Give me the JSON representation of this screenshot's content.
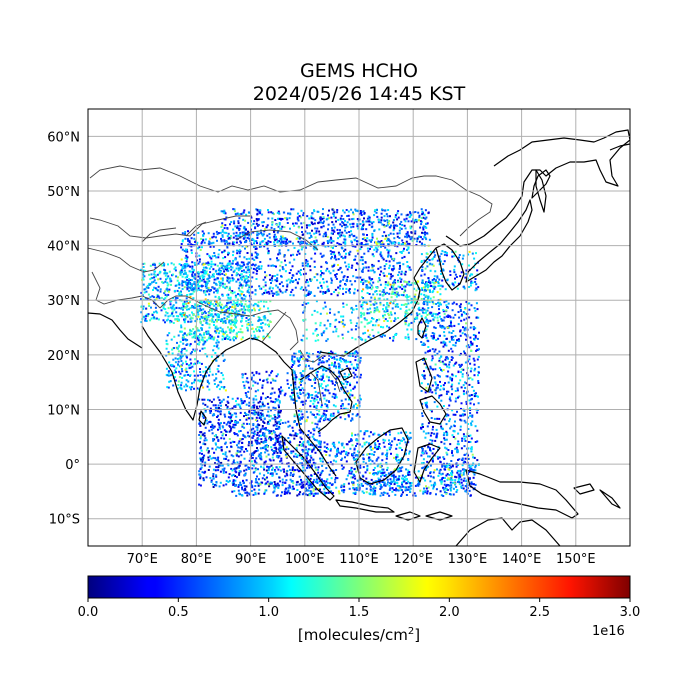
{
  "title": {
    "line1": "GEMS HCHO",
    "line2": "2024/05/26 14:45 KST"
  },
  "map": {
    "lat_ticks": [
      "60°N",
      "50°N",
      "40°N",
      "30°N",
      "20°N",
      "10°N",
      "0°",
      "10°S"
    ],
    "lon_ticks": [
      "70°E",
      "80°E",
      "90°E",
      "100°E",
      "110°E",
      "120°E",
      "130°E",
      "140°E",
      "150°E"
    ],
    "lon_range": [
      60,
      160
    ],
    "lat_range": [
      -15,
      65
    ],
    "grid": true
  },
  "colorbar": {
    "colormap": "jet",
    "ticks": [
      "0.0",
      "0.5",
      "1.0",
      "1.5",
      "2.0",
      "2.5",
      "3.0"
    ],
    "label_prefix": "[molecules/cm",
    "label_exp": "2",
    "label_suffix": "]",
    "scale_label": "1e16",
    "range": [
      0,
      3.0
    ]
  }
}
